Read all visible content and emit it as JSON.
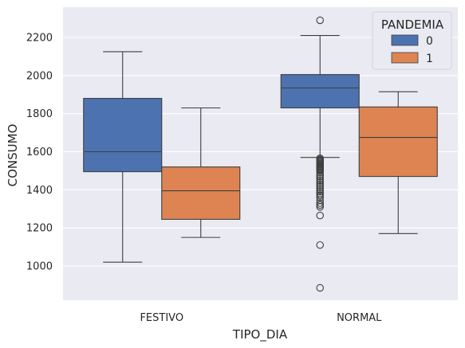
{
  "chart_data": {
    "type": "box",
    "xlabel": "TIPO_DIA",
    "ylabel": "CONSUMO",
    "categories": [
      "FESTIVO",
      "NORMAL"
    ],
    "ylim": [
      800,
      2350
    ],
    "yticks": [
      1000,
      1200,
      1400,
      1600,
      1800,
      2000,
      2200
    ],
    "ytick_labels": [
      "1000",
      "1200",
      "1400",
      "1600",
      "1800",
      "2000",
      "2200"
    ],
    "grid": true,
    "legend": {
      "title": "PANDEMIA",
      "position": "top-right"
    },
    "series": [
      {
        "name": "0",
        "color": "#4c72b0",
        "boxes": [
          {
            "category": "FESTIVO",
            "whisker_low": 1020,
            "q1": 1495,
            "median": 1600,
            "q3": 1880,
            "whisker_high": 2125,
            "outliers": []
          },
          {
            "category": "NORMAL",
            "whisker_low": 1570,
            "q1": 1830,
            "median": 1935,
            "q3": 2005,
            "whisker_high": 2210,
            "outliers": [
              2290,
              1565,
              1560,
              1555,
              1550,
              1545,
              1540,
              1535,
              1530,
              1525,
              1520,
              1515,
              1510,
              1505,
              1500,
              1490,
              1480,
              1470,
              1460,
              1450,
              1440,
              1430,
              1420,
              1410,
              1400,
              1390,
              1380,
              1370,
              1360,
              1345,
              1330,
              1320,
              1310,
              1265,
              1110,
              885
            ]
          }
        ]
      },
      {
        "name": "1",
        "color": "#dd8452",
        "boxes": [
          {
            "category": "FESTIVO",
            "whisker_low": 1150,
            "q1": 1245,
            "median": 1395,
            "q3": 1520,
            "whisker_high": 1830,
            "outliers": []
          },
          {
            "category": "NORMAL",
            "whisker_low": 1170,
            "q1": 1470,
            "median": 1675,
            "q3": 1835,
            "whisker_high": 1915,
            "outliers": []
          }
        ]
      }
    ]
  }
}
